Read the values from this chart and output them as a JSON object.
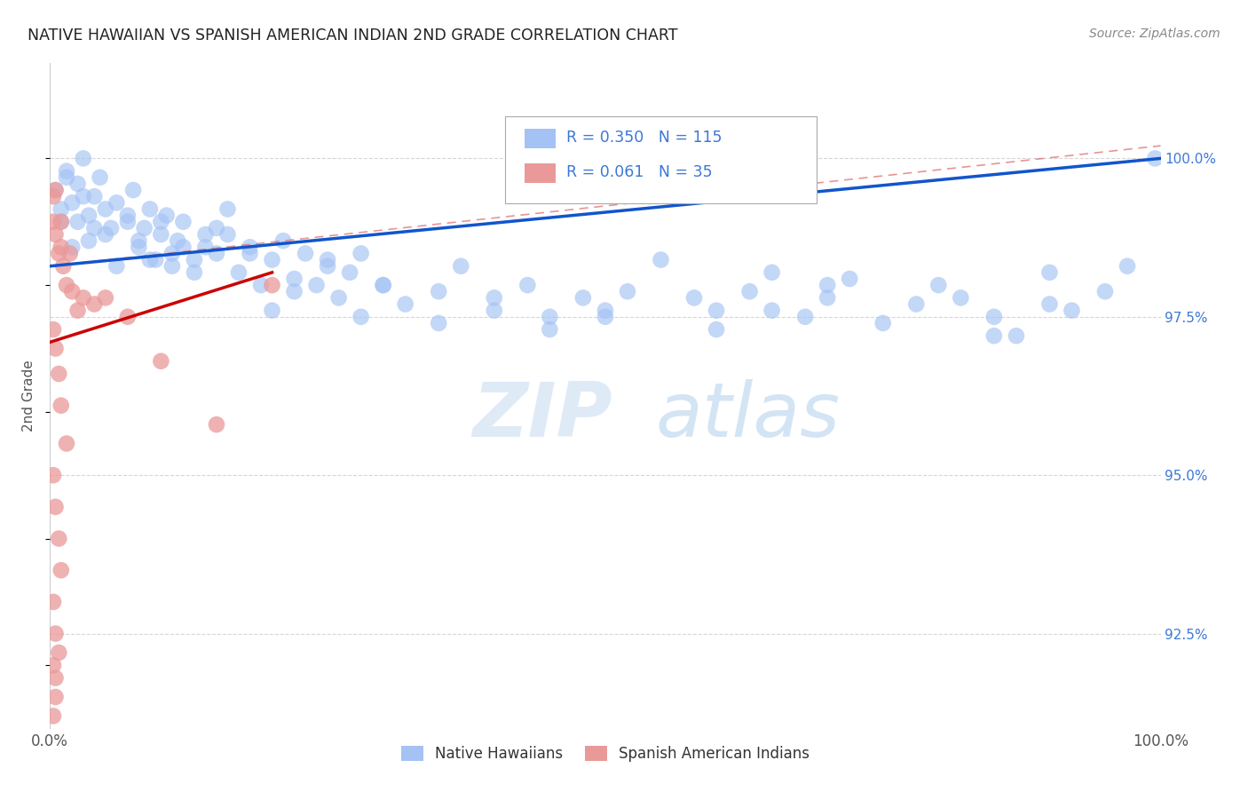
{
  "title": "NATIVE HAWAIIAN VS SPANISH AMERICAN INDIAN 2ND GRADE CORRELATION CHART",
  "source": "Source: ZipAtlas.com",
  "ylabel": "2nd Grade",
  "ylabel_right_ticks": [
    100.0,
    97.5,
    95.0,
    92.5
  ],
  "ylabel_right_labels": [
    "100.0%",
    "97.5%",
    "95.0%",
    "92.5%"
  ],
  "xlim": [
    0.0,
    100.0
  ],
  "ylim": [
    91.0,
    101.5
  ],
  "legend_label1": "Native Hawaiians",
  "legend_label2": "Spanish American Indians",
  "blue_color": "#a4c2f4",
  "pink_color": "#ea9999",
  "trend_blue_color": "#1155cc",
  "trend_pink_color": "#cc0000",
  "trend_dashed_color": "#e06666",
  "watermark_zip": "ZIP",
  "watermark_atlas": "atlas",
  "blue_trend_x0": 0.0,
  "blue_trend_y0": 98.3,
  "blue_trend_x1": 100.0,
  "blue_trend_y1": 100.0,
  "pink_trend_x0": 0.0,
  "pink_trend_y0": 97.1,
  "pink_trend_x1": 20.0,
  "pink_trend_y1": 98.2,
  "dashed_trend_x0": 0.0,
  "dashed_trend_y0": 98.3,
  "dashed_trend_x1": 100.0,
  "dashed_trend_y1": 100.2,
  "blue_x": [
    0.5,
    1.0,
    1.5,
    2.0,
    2.5,
    3.0,
    3.5,
    4.0,
    4.5,
    5.0,
    1.0,
    2.0,
    3.0,
    4.0,
    5.0,
    1.5,
    2.5,
    3.5,
    5.5,
    6.0,
    7.0,
    7.5,
    8.0,
    8.5,
    9.0,
    9.5,
    10.0,
    10.5,
    11.0,
    11.5,
    12.0,
    13.0,
    14.0,
    15.0,
    6.0,
    7.0,
    8.0,
    9.0,
    10.0,
    11.0,
    12.0,
    13.0,
    14.0,
    15.0,
    16.0,
    17.0,
    18.0,
    19.0,
    20.0,
    21.0,
    22.0,
    23.0,
    24.0,
    25.0,
    26.0,
    27.0,
    28.0,
    30.0,
    16.0,
    18.0,
    20.0,
    22.0,
    25.0,
    28.0,
    30.0,
    32.0,
    35.0,
    37.0,
    40.0,
    43.0,
    45.0,
    48.0,
    50.0,
    52.0,
    35.0,
    40.0,
    45.0,
    50.0,
    55.0,
    58.0,
    60.0,
    63.0,
    65.0,
    68.0,
    70.0,
    72.0,
    75.0,
    78.0,
    80.0,
    60.0,
    65.0,
    70.0,
    82.0,
    85.0,
    87.0,
    90.0,
    92.0,
    95.0,
    97.0,
    99.5,
    85.0,
    90.0
  ],
  "blue_y": [
    99.5,
    99.2,
    99.8,
    99.3,
    99.6,
    100.0,
    99.1,
    99.4,
    99.7,
    98.8,
    99.0,
    98.6,
    99.4,
    98.9,
    99.2,
    99.7,
    99.0,
    98.7,
    98.9,
    99.3,
    99.0,
    99.5,
    98.6,
    98.9,
    99.2,
    98.4,
    98.8,
    99.1,
    98.5,
    98.7,
    99.0,
    98.4,
    98.6,
    98.9,
    98.3,
    99.1,
    98.7,
    98.4,
    99.0,
    98.3,
    98.6,
    98.2,
    98.8,
    98.5,
    98.8,
    98.2,
    98.6,
    98.0,
    98.4,
    98.7,
    98.1,
    98.5,
    98.0,
    98.3,
    97.8,
    98.2,
    98.5,
    98.0,
    99.2,
    98.5,
    97.6,
    97.9,
    98.4,
    97.5,
    98.0,
    97.7,
    97.9,
    98.3,
    97.6,
    98.0,
    97.5,
    97.8,
    97.5,
    97.9,
    97.4,
    97.8,
    97.3,
    97.6,
    98.4,
    97.8,
    97.6,
    97.9,
    98.2,
    97.5,
    97.8,
    98.1,
    97.4,
    97.7,
    98.0,
    97.3,
    97.6,
    98.0,
    97.8,
    97.5,
    97.2,
    98.2,
    97.6,
    97.9,
    98.3,
    100.0,
    97.2,
    97.7
  ],
  "pink_x": [
    0.3,
    0.3,
    0.5,
    0.5,
    0.8,
    1.0,
    1.0,
    1.2,
    1.5,
    1.8,
    2.0,
    2.5,
    3.0,
    0.3,
    0.5,
    0.8,
    1.0,
    1.5,
    0.3,
    0.5,
    0.8,
    1.0,
    0.3,
    0.5,
    0.3,
    0.5,
    4.0,
    5.0,
    7.0,
    10.0,
    15.0,
    20.0,
    0.3,
    0.5,
    0.8
  ],
  "pink_y": [
    99.4,
    99.0,
    99.5,
    98.8,
    98.5,
    99.0,
    98.6,
    98.3,
    98.0,
    98.5,
    97.9,
    97.6,
    97.8,
    97.3,
    97.0,
    96.6,
    96.1,
    95.5,
    95.0,
    94.5,
    94.0,
    93.5,
    93.0,
    92.5,
    92.0,
    91.5,
    97.7,
    97.8,
    97.5,
    96.8,
    95.8,
    98.0,
    91.2,
    91.8,
    92.2
  ]
}
